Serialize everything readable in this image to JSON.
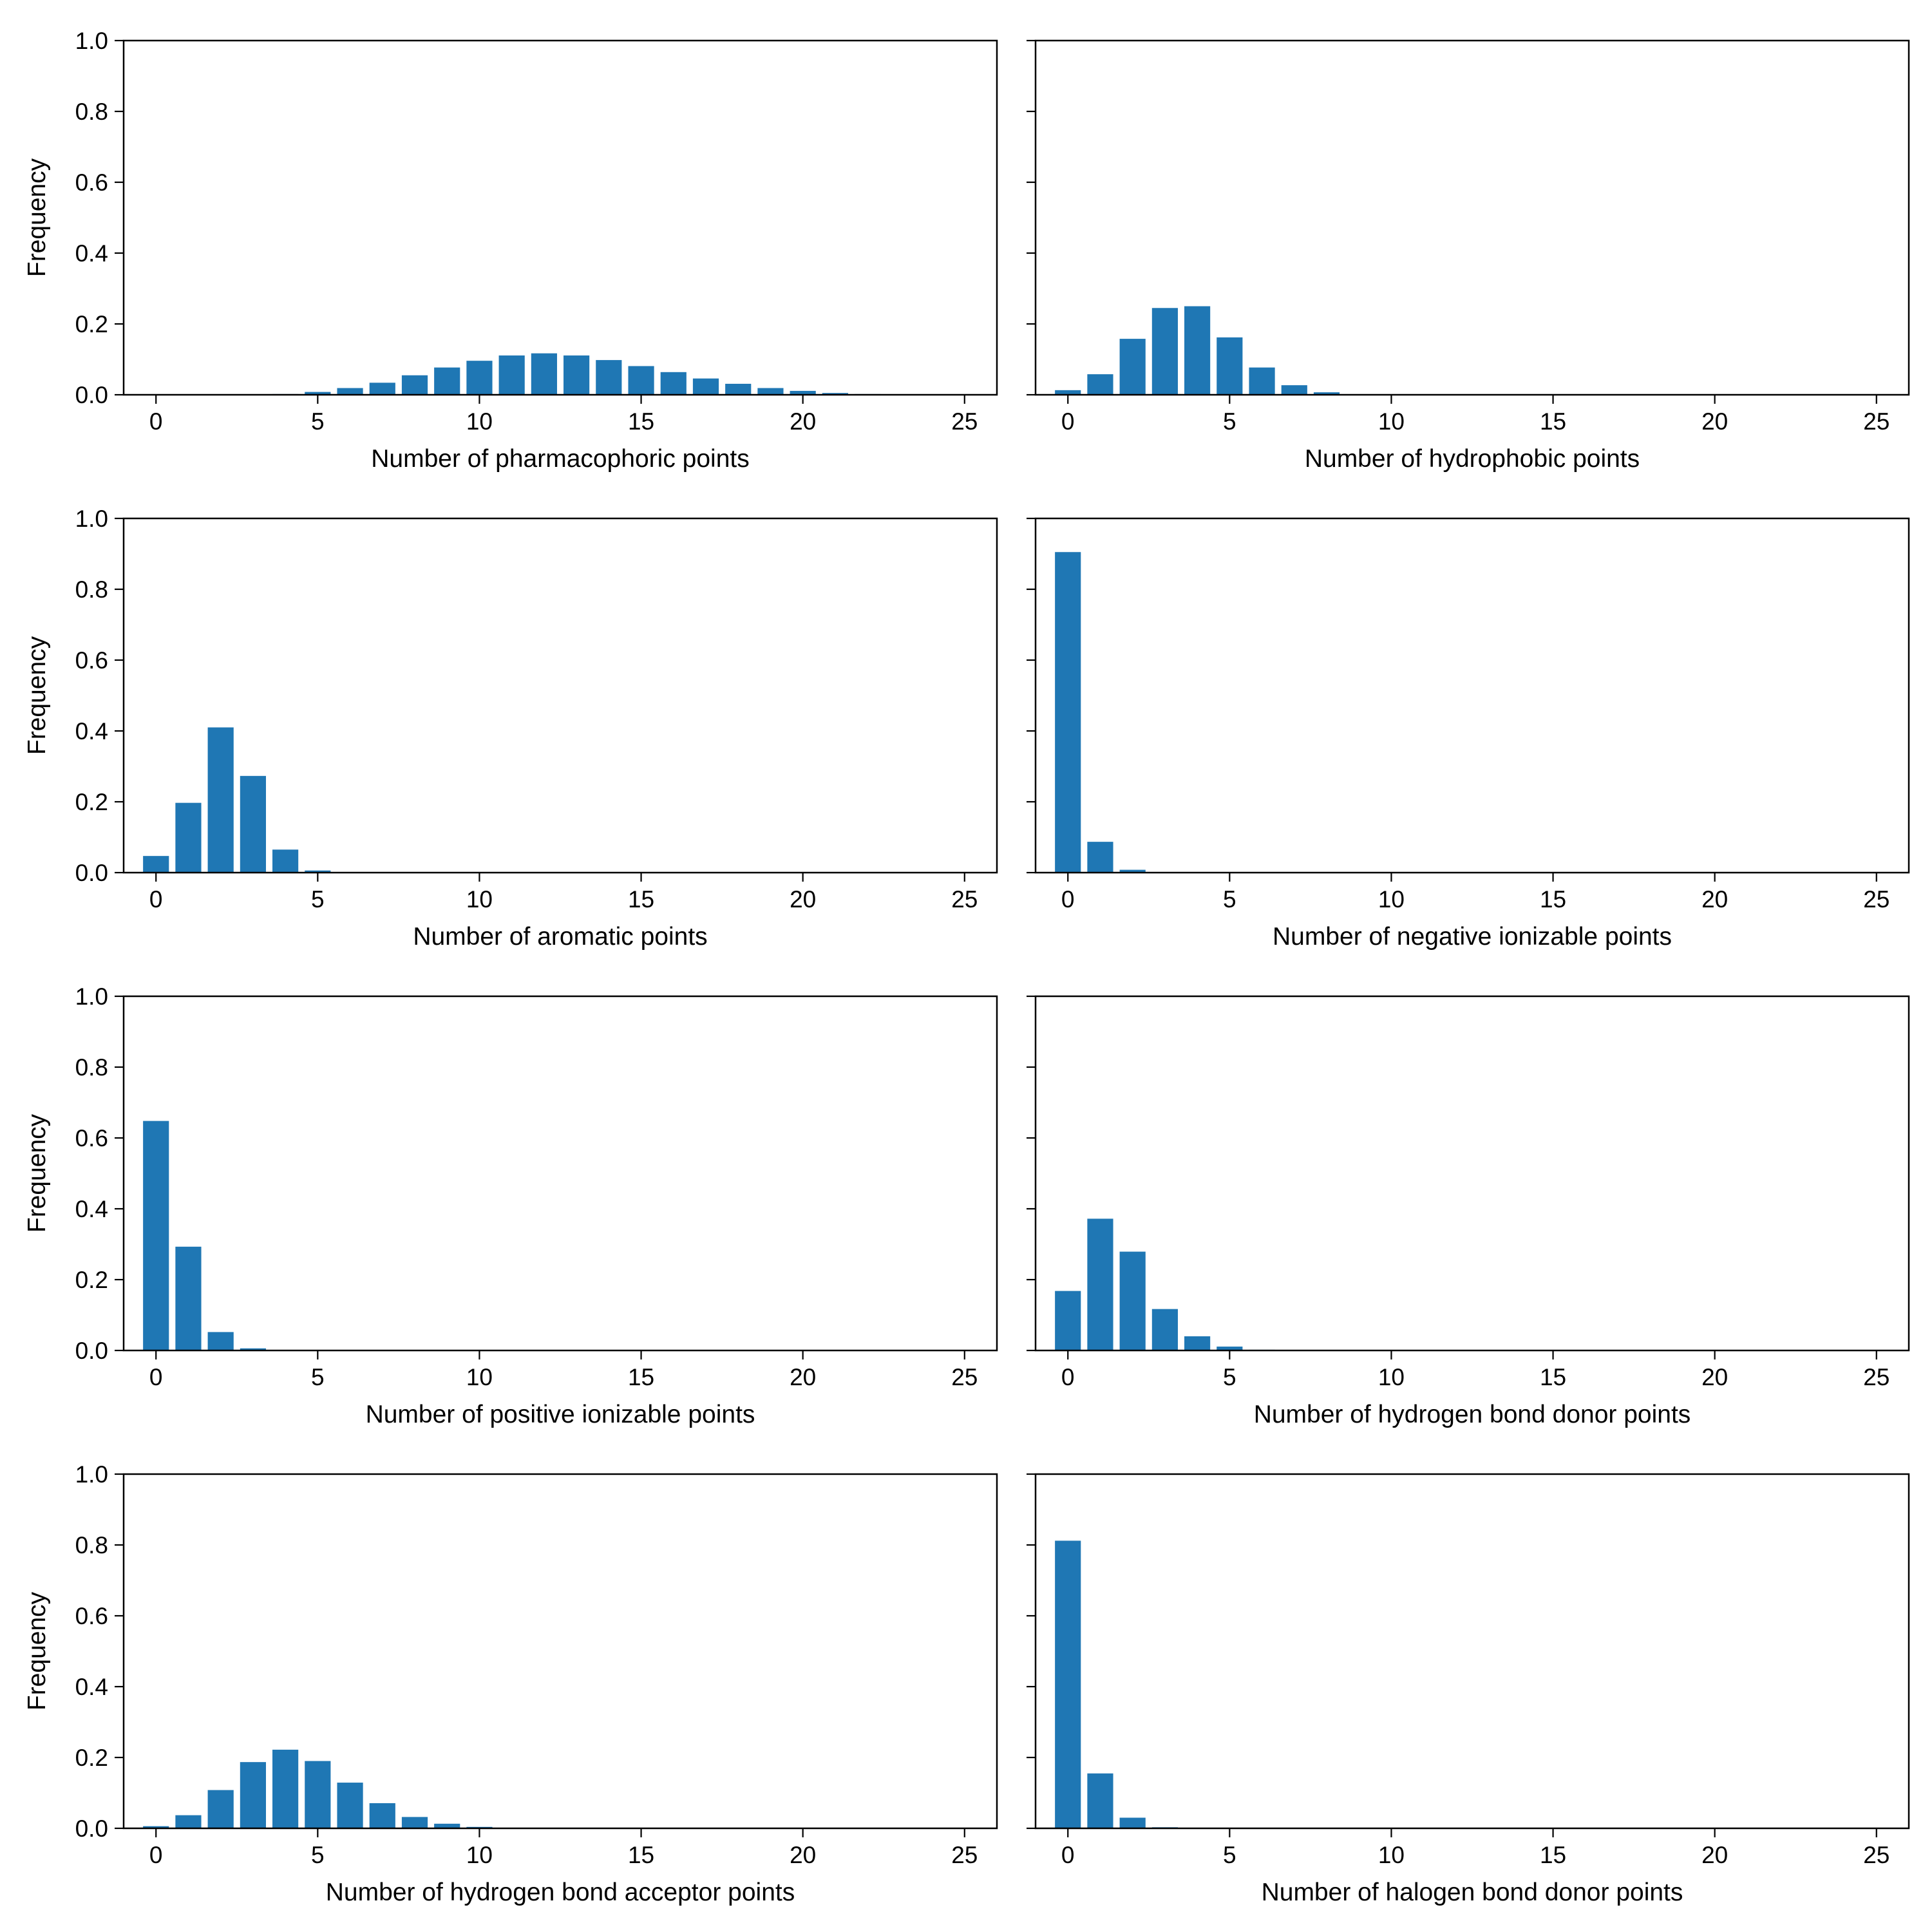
{
  "figure": {
    "bar_color": "#1f77b4",
    "axis_color": "#000000",
    "background": "#ffffff"
  },
  "chart_data": [
    {
      "type": "bar",
      "xlabel": "Number of pharmacophoric points",
      "ylabel": "Frequency",
      "show_yticklabels": true,
      "xlim": [
        -1,
        26
      ],
      "ylim": [
        0,
        1
      ],
      "xticks": [
        0,
        5,
        10,
        15,
        20,
        25
      ],
      "yticks": [
        0.0,
        0.2,
        0.4,
        0.6,
        0.8,
        1.0
      ],
      "categories": [
        0,
        1,
        2,
        3,
        4,
        5,
        6,
        7,
        8,
        9,
        10,
        11,
        12,
        13,
        14,
        15,
        16,
        17,
        18,
        19,
        20,
        21,
        22,
        23,
        24,
        25
      ],
      "values": [
        0,
        0,
        0,
        0,
        0.002,
        0.008,
        0.019,
        0.034,
        0.055,
        0.077,
        0.096,
        0.111,
        0.117,
        0.111,
        0.098,
        0.081,
        0.064,
        0.046,
        0.031,
        0.019,
        0.011,
        0.005,
        0.002,
        0.001,
        0,
        0
      ]
    },
    {
      "type": "bar",
      "xlabel": "Number of hydrophobic points",
      "ylabel": "",
      "show_yticklabels": false,
      "xlim": [
        -1,
        26
      ],
      "ylim": [
        0,
        1
      ],
      "xticks": [
        0,
        5,
        10,
        15,
        20,
        25
      ],
      "yticks": [
        0.0,
        0.2,
        0.4,
        0.6,
        0.8,
        1.0
      ],
      "categories": [
        0,
        1,
        2,
        3,
        4,
        5,
        6,
        7,
        8,
        9,
        10,
        11,
        12,
        13,
        14,
        15,
        16,
        17,
        18,
        19,
        20,
        21,
        22,
        23,
        24,
        25
      ],
      "values": [
        0.013,
        0.058,
        0.158,
        0.245,
        0.25,
        0.162,
        0.077,
        0.027,
        0.007,
        0.001,
        0,
        0,
        0,
        0,
        0,
        0,
        0,
        0,
        0,
        0,
        0,
        0,
        0,
        0,
        0,
        0
      ]
    },
    {
      "type": "bar",
      "xlabel": "Number of aromatic points",
      "ylabel": "Frequency",
      "show_yticklabels": true,
      "xlim": [
        -1,
        26
      ],
      "ylim": [
        0,
        1
      ],
      "xticks": [
        0,
        5,
        10,
        15,
        20,
        25
      ],
      "yticks": [
        0.0,
        0.2,
        0.4,
        0.6,
        0.8,
        1.0
      ],
      "categories": [
        0,
        1,
        2,
        3,
        4,
        5,
        6,
        7,
        8,
        9,
        10,
        11,
        12,
        13,
        14,
        15,
        16,
        17,
        18,
        19,
        20,
        21,
        22,
        23,
        24,
        25
      ],
      "values": [
        0.047,
        0.197,
        0.41,
        0.273,
        0.065,
        0.006,
        0,
        0,
        0,
        0,
        0,
        0,
        0,
        0,
        0,
        0,
        0,
        0,
        0,
        0,
        0,
        0,
        0,
        0,
        0,
        0
      ]
    },
    {
      "type": "bar",
      "xlabel": "Number of negative ionizable points",
      "ylabel": "",
      "show_yticklabels": false,
      "xlim": [
        -1,
        26
      ],
      "ylim": [
        0,
        1
      ],
      "xticks": [
        0,
        5,
        10,
        15,
        20,
        25
      ],
      "yticks": [
        0.0,
        0.2,
        0.4,
        0.6,
        0.8,
        1.0
      ],
      "categories": [
        0,
        1,
        2,
        3,
        4,
        5,
        6,
        7,
        8,
        9,
        10,
        11,
        12,
        13,
        14,
        15,
        16,
        17,
        18,
        19,
        20,
        21,
        22,
        23,
        24,
        25
      ],
      "values": [
        0.905,
        0.087,
        0.008,
        0,
        0,
        0,
        0,
        0,
        0,
        0,
        0,
        0,
        0,
        0,
        0,
        0,
        0,
        0,
        0,
        0,
        0,
        0,
        0,
        0,
        0,
        0
      ]
    },
    {
      "type": "bar",
      "xlabel": "Number of positive ionizable points",
      "ylabel": "Frequency",
      "show_yticklabels": true,
      "xlim": [
        -1,
        26
      ],
      "ylim": [
        0,
        1
      ],
      "xticks": [
        0,
        5,
        10,
        15,
        20,
        25
      ],
      "yticks": [
        0.0,
        0.2,
        0.4,
        0.6,
        0.8,
        1.0
      ],
      "categories": [
        0,
        1,
        2,
        3,
        4,
        5,
        6,
        7,
        8,
        9,
        10,
        11,
        12,
        13,
        14,
        15,
        16,
        17,
        18,
        19,
        20,
        21,
        22,
        23,
        24,
        25
      ],
      "values": [
        0.648,
        0.293,
        0.052,
        0.006,
        0,
        0,
        0,
        0,
        0,
        0,
        0,
        0,
        0,
        0,
        0,
        0,
        0,
        0,
        0,
        0,
        0,
        0,
        0,
        0,
        0,
        0
      ]
    },
    {
      "type": "bar",
      "xlabel": "Number of hydrogen bond donor points",
      "ylabel": "",
      "show_yticklabels": false,
      "xlim": [
        -1,
        26
      ],
      "ylim": [
        0,
        1
      ],
      "xticks": [
        0,
        5,
        10,
        15,
        20,
        25
      ],
      "yticks": [
        0.0,
        0.2,
        0.4,
        0.6,
        0.8,
        1.0
      ],
      "categories": [
        0,
        1,
        2,
        3,
        4,
        5,
        6,
        7,
        8,
        9,
        10,
        11,
        12,
        13,
        14,
        15,
        16,
        17,
        18,
        19,
        20,
        21,
        22,
        23,
        24,
        25
      ],
      "values": [
        0.168,
        0.372,
        0.279,
        0.117,
        0.04,
        0.011,
        0.002,
        0,
        0,
        0,
        0,
        0,
        0,
        0,
        0,
        0,
        0,
        0,
        0,
        0,
        0,
        0,
        0,
        0,
        0,
        0
      ]
    },
    {
      "type": "bar",
      "xlabel": "Number of hydrogen bond acceptor points",
      "ylabel": "Frequency",
      "show_yticklabels": true,
      "xlim": [
        -1,
        26
      ],
      "ylim": [
        0,
        1
      ],
      "xticks": [
        0,
        5,
        10,
        15,
        20,
        25
      ],
      "yticks": [
        0.0,
        0.2,
        0.4,
        0.6,
        0.8,
        1.0
      ],
      "categories": [
        0,
        1,
        2,
        3,
        4,
        5,
        6,
        7,
        8,
        9,
        10,
        11,
        12,
        13,
        14,
        15,
        16,
        17,
        18,
        19,
        20,
        21,
        22,
        23,
        24,
        25
      ],
      "values": [
        0.006,
        0.037,
        0.108,
        0.187,
        0.222,
        0.19,
        0.129,
        0.071,
        0.032,
        0.013,
        0.004,
        0.001,
        0,
        0,
        0,
        0,
        0,
        0,
        0,
        0,
        0,
        0,
        0,
        0,
        0,
        0
      ]
    },
    {
      "type": "bar",
      "xlabel": "Number of halogen bond donor points",
      "ylabel": "",
      "show_yticklabels": false,
      "xlim": [
        -1,
        26
      ],
      "ylim": [
        0,
        1
      ],
      "xticks": [
        0,
        5,
        10,
        15,
        20,
        25
      ],
      "yticks": [
        0.0,
        0.2,
        0.4,
        0.6,
        0.8,
        1.0
      ],
      "categories": [
        0,
        1,
        2,
        3,
        4,
        5,
        6,
        7,
        8,
        9,
        10,
        11,
        12,
        13,
        14,
        15,
        16,
        17,
        18,
        19,
        20,
        21,
        22,
        23,
        24,
        25
      ],
      "values": [
        0.812,
        0.155,
        0.03,
        0.003,
        0,
        0,
        0,
        0,
        0,
        0,
        0,
        0,
        0,
        0,
        0,
        0,
        0,
        0,
        0,
        0,
        0,
        0,
        0,
        0,
        0,
        0
      ]
    }
  ]
}
